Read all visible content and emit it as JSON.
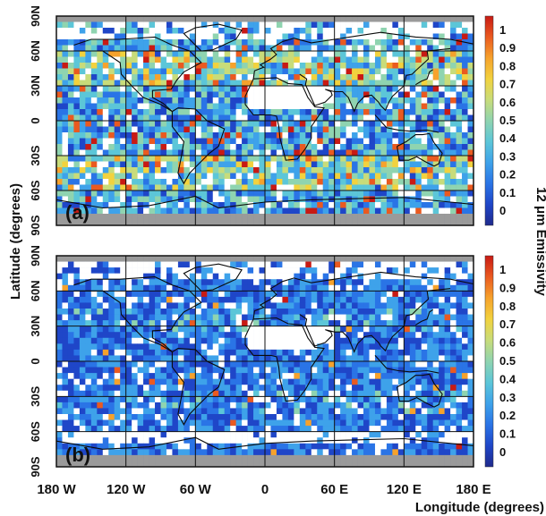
{
  "chart_data": {
    "type": "heatmap",
    "ylabel": "Latitude (degrees)",
    "xlabel": "Longitude (degrees)",
    "colorbar_label": "12 μm  Emissivity",
    "colorbar_ticks": [
      "1",
      "0.9",
      "0.8",
      "0.7",
      "0.6",
      "0.5",
      "0.4",
      "0.3",
      "0.2",
      "0.1",
      "0"
    ],
    "colorbar_range": [
      0,
      1
    ],
    "x_ticks": [
      "180 W",
      "120 W",
      "60 W",
      "0",
      "60 E",
      "120 E",
      "180 E"
    ],
    "xlim": [
      -180,
      180
    ],
    "y_ticks": [
      "90N",
      "60N",
      "30N",
      "0",
      "30S",
      "60S",
      "90S"
    ],
    "ylim": [
      -90,
      90
    ],
    "grid": true,
    "colors": {
      "no_data": "#ffffff",
      "polar_band": "#9a9a9a",
      "colormap": [
        "#1f2a8c",
        "#1f46c8",
        "#2a74e6",
        "#3ea2ea",
        "#5cc6d8",
        "#8fd4b0",
        "#c8dc7a",
        "#f2d23e",
        "#f6a22c",
        "#ea5a20",
        "#c81a14"
      ]
    },
    "panels": [
      {
        "label": "(a)",
        "description_value_regime": "high",
        "value_distribution": {
          "typical": [
            0.15,
            0.55
          ],
          "peak": 1.0
        },
        "features": [
          "high emissivity bands at 30N-60N and 30S-60S",
          "white no-data patches over Sahara and high latitudes"
        ]
      },
      {
        "label": "(b)",
        "description_value_regime": "low",
        "value_distribution": {
          "typical": [
            0.1,
            0.35
          ],
          "peak": 1.0
        },
        "features": [
          "mostly low emissivity",
          "white no-data patches over Sahara, Antarctica margin and Arctic"
        ]
      }
    ]
  }
}
